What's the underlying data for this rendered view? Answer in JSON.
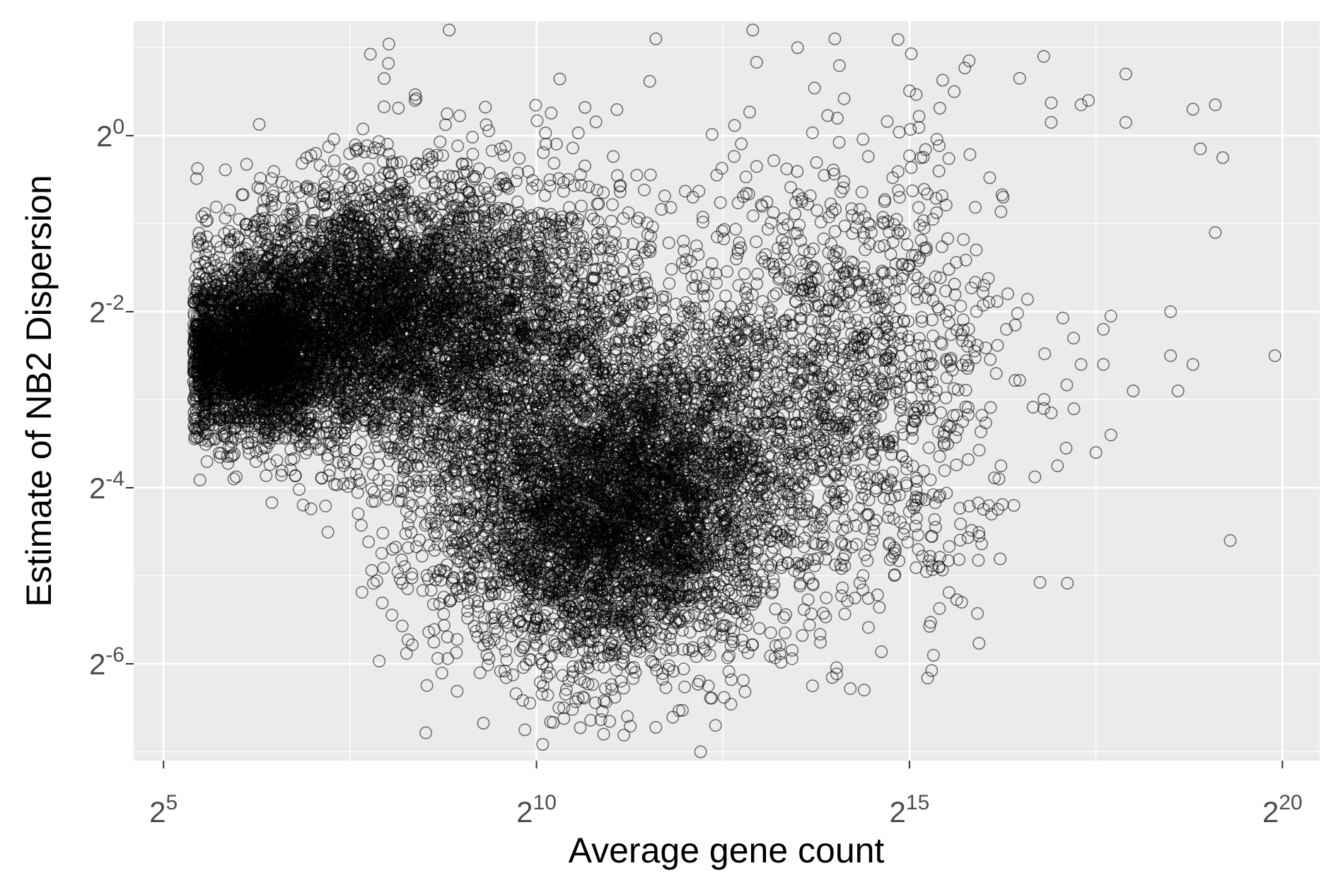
{
  "chart_data": {
    "type": "scatter",
    "xlabel": "Average gene count",
    "ylabel": "Estimate of NB2 Dispersion",
    "x_scale": "log2",
    "y_scale": "log2",
    "xlim_log2": [
      4.6,
      20.5
    ],
    "ylim_log2": [
      -7.1,
      1.3
    ],
    "x_ticks": [
      {
        "base": "2",
        "exp": "5",
        "log2": 5
      },
      {
        "base": "2",
        "exp": "10",
        "log2": 10
      },
      {
        "base": "2",
        "exp": "15",
        "log2": 15
      },
      {
        "base": "2",
        "exp": "20",
        "log2": 20
      }
    ],
    "y_ticks": [
      {
        "base": "2",
        "exp": "0",
        "log2": 0
      },
      {
        "base": "2",
        "exp": "-2",
        "log2": -2
      },
      {
        "base": "2",
        "exp": "-4",
        "log2": -4
      },
      {
        "base": "2",
        "exp": "-6",
        "log2": -6
      }
    ],
    "grid": true,
    "legend": "none",
    "marker": "open-circle",
    "colors": {
      "panel_background": "#ebebeb",
      "major_grid": "#ffffff",
      "point_stroke": "#000000"
    },
    "point_count_approx": 15000,
    "density_clusters_log2": [
      {
        "x": 6.2,
        "y": -2.5,
        "sx": 0.55,
        "sy": 0.45,
        "weight": 0.18
      },
      {
        "x": 7.5,
        "y": -2.0,
        "sx": 0.9,
        "sy": 0.7,
        "weight": 0.2
      },
      {
        "x": 9.3,
        "y": -2.2,
        "sx": 1.1,
        "sy": 0.9,
        "weight": 0.18
      },
      {
        "x": 10.8,
        "y": -4.4,
        "sx": 1.1,
        "sy": 0.8,
        "weight": 0.26
      },
      {
        "x": 12.0,
        "y": -3.5,
        "sx": 1.0,
        "sy": 1.0,
        "weight": 0.1
      },
      {
        "x": 14.2,
        "y": -2.8,
        "sx": 1.0,
        "sy": 1.3,
        "weight": 0.08
      }
    ],
    "outlier_points_log2": [
      [
        19.9,
        -2.5
      ],
      [
        19.3,
        -4.6
      ],
      [
        19.1,
        -1.1
      ],
      [
        19.1,
        0.35
      ],
      [
        19.2,
        -0.25
      ],
      [
        18.8,
        0.3
      ],
      [
        18.9,
        -0.15
      ],
      [
        18.6,
        -2.9
      ],
      [
        18.5,
        -2.5
      ],
      [
        18.5,
        -2.0
      ],
      [
        18.8,
        -2.6
      ],
      [
        18.0,
        -2.9
      ],
      [
        17.9,
        0.15
      ],
      [
        17.9,
        0.7
      ],
      [
        17.7,
        -3.4
      ],
      [
        17.6,
        -2.6
      ],
      [
        17.7,
        -2.05
      ],
      [
        17.6,
        -2.2
      ],
      [
        17.5,
        -3.6
      ],
      [
        17.3,
        -2.6
      ],
      [
        17.2,
        -2.3
      ],
      [
        17.1,
        -3.55
      ],
      [
        16.9,
        -3.15
      ],
      [
        16.8,
        -3.1
      ],
      [
        16.8,
        0.9
      ],
      [
        16.9,
        0.15
      ],
      [
        17.4,
        0.4
      ],
      [
        17.3,
        0.35
      ],
      [
        16.2,
        -3.9
      ],
      [
        16.1,
        -4.3
      ],
      [
        16.4,
        -4.2
      ],
      [
        15.8,
        0.85
      ],
      [
        15.6,
        0.5
      ],
      [
        16.0,
        -1.7
      ],
      [
        16.3,
        -2.2
      ],
      [
        15.7,
        -5.3
      ],
      [
        15.4,
        -4.9
      ],
      [
        13.7,
        -6.25
      ],
      [
        12.4,
        -6.7
      ],
      [
        12.2,
        -7.0
      ],
      [
        10.3,
        -6.5
      ],
      [
        12.9,
        1.2
      ],
      [
        13.5,
        1.0
      ],
      [
        14.0,
        1.1
      ],
      [
        11.6,
        1.1
      ]
    ]
  }
}
